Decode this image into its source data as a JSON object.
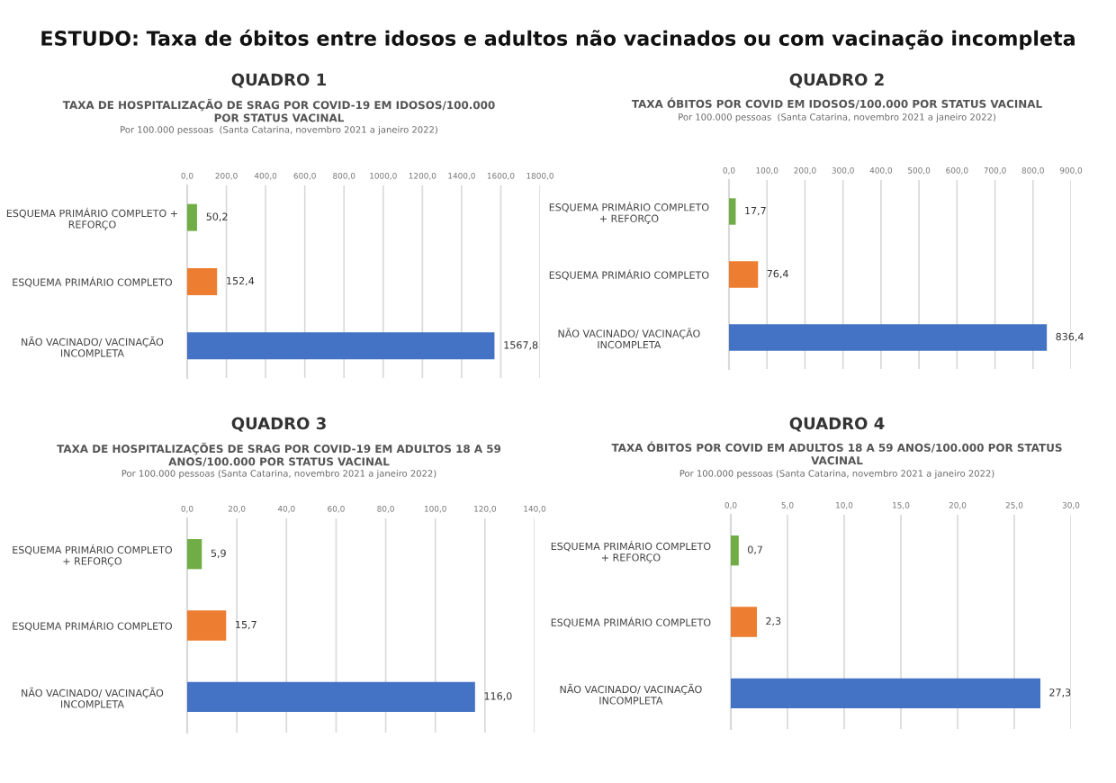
{
  "chart_data": [
    {
      "type": "bar",
      "orientation": "horizontal",
      "title": "QUADRO 1",
      "subtitle": "TAXA DE HOSPITALIZAÇÃO DE SRAG POR COVID-19 EM IDOSOS/100.000\nPOR STATUS VACINAL",
      "annotations": [
        "ESTUDO: Taxa de óbitos entre idosos e adultos não vacinados ou com vacinação incompleta",
        "Por 100.000 pessoas  (Santa Catarina, novembro 2021 a janeiro 2022)"
      ],
      "categories": [
        "ESQUEMA PRIMÁRIO COMPLETO +\nREFORÇO",
        "ESQUEMA PRIMÁRIO COMPLETO",
        "NÃO VACINADO/ VACINAÇÃO\nINCOMPLETA"
      ],
      "values": [
        50.2,
        152.4,
        1567.8
      ],
      "value_labels": [
        "50,2",
        "152,4",
        "1567,8"
      ],
      "colors": [
        "#70ad47",
        "#ed7d31",
        "#4472c4"
      ],
      "xlim": [
        0,
        1800
      ],
      "xticks": [
        {
          "value": 0,
          "label": "0,0"
        },
        {
          "value": 200,
          "label": "200,0"
        },
        {
          "value": 400,
          "label": "400,0"
        },
        {
          "value": 600,
          "label": "600,0"
        },
        {
          "value": 800,
          "label": "800,0"
        },
        {
          "value": 1000,
          "label": "1000,0"
        },
        {
          "value": 1200,
          "label": "1200,0"
        },
        {
          "value": 1400,
          "label": "1400,0"
        },
        {
          "value": 1600,
          "label": "1600,0"
        },
        {
          "value": 1800,
          "label": "1800,0"
        }
      ],
      "grid": "x"
    },
    {
      "type": "bar",
      "orientation": "horizontal",
      "title": "QUADRO 2",
      "subtitle": "TAXA ÓBITOS POR COVID EM IDOSOS/100.000 POR STATUS VACINAL",
      "annotations": [
        "Por 100.000 pessoas  (Santa Catarina, novembro 2021 a janeiro 2022)"
      ],
      "categories": [
        "ESQUEMA PRIMÁRIO COMPLETO\n+ REFORÇO",
        "ESQUEMA PRIMÁRIO COMPLETO",
        "NÃO VACINADO/ VACINAÇÃO\nINCOMPLETA"
      ],
      "values": [
        17.7,
        76.4,
        836.4
      ],
      "value_labels": [
        "17,7",
        "76,4",
        "836,4"
      ],
      "colors": [
        "#70ad47",
        "#ed7d31",
        "#4472c4"
      ],
      "xlim": [
        0,
        900
      ],
      "xticks": [
        {
          "value": 0,
          "label": "0,0"
        },
        {
          "value": 100,
          "label": "100,0"
        },
        {
          "value": 200,
          "label": "200,0"
        },
        {
          "value": 300,
          "label": "300,0"
        },
        {
          "value": 400,
          "label": "400,0"
        },
        {
          "value": 500,
          "label": "500,0"
        },
        {
          "value": 600,
          "label": "600,0"
        },
        {
          "value": 700,
          "label": "700,0"
        },
        {
          "value": 800,
          "label": "800,0"
        },
        {
          "value": 900,
          "label": "900,0"
        }
      ],
      "grid": "x"
    },
    {
      "type": "bar",
      "orientation": "horizontal",
      "title": "QUADRO 3",
      "subtitle": "TAXA DE HOSPITALIZAÇÕES DE SRAG POR COVID-19 EM ADULTOS 18 A 59\nANOS/100.000 POR STATUS VACINAL",
      "annotations": [
        "Por 100.000 pessoas (Santa Catarina, novembro 2021 a janeiro 2022)"
      ],
      "categories": [
        "ESQUEMA PRIMÁRIO COMPLETO\n+ REFORÇO",
        "ESQUEMA PRIMÁRIO COMPLETO",
        "NÃO VACINADO/ VACINAÇÃO\nINCOMPLETA"
      ],
      "values": [
        5.9,
        15.7,
        116.0
      ],
      "value_labels": [
        "5,9",
        "15,7",
        "116,0"
      ],
      "colors": [
        "#70ad47",
        "#ed7d31",
        "#4472c4"
      ],
      "xlim": [
        0,
        140
      ],
      "xticks": [
        {
          "value": 0,
          "label": "0,0"
        },
        {
          "value": 20,
          "label": "20,0"
        },
        {
          "value": 40,
          "label": "40,0"
        },
        {
          "value": 60,
          "label": "60,0"
        },
        {
          "value": 80,
          "label": "80,0"
        },
        {
          "value": 100,
          "label": "100,0"
        },
        {
          "value": 120,
          "label": "120,0"
        },
        {
          "value": 140,
          "label": "140,0"
        }
      ],
      "grid": "x"
    },
    {
      "type": "bar",
      "orientation": "horizontal",
      "title": "QUADRO 4",
      "subtitle": "TAXA ÓBITOS POR COVID EM ADULTOS 18 A 59 ANOS/100.000 POR STATUS\nVACINAL",
      "annotations": [
        "Por 100.000 pessoas (Santa Catarina, novembro 2021 a janeiro 2022)"
      ],
      "categories": [
        "ESQUEMA PRIMÁRIO COMPLETO\n+ REFORÇO",
        "ESQUEMA PRIMÁRIO COMPLETO",
        "NÃO VACINADO/ VACINAÇÃO\nINCOMPLETA"
      ],
      "values": [
        0.7,
        2.3,
        27.3
      ],
      "value_labels": [
        "0,7",
        "2,3",
        "27,3"
      ],
      "colors": [
        "#70ad47",
        "#ed7d31",
        "#4472c4"
      ],
      "xlim": [
        0,
        30
      ],
      "xticks": [
        {
          "value": 0,
          "label": "0,0"
        },
        {
          "value": 5,
          "label": "5,0"
        },
        {
          "value": 10,
          "label": "10,0"
        },
        {
          "value": 15,
          "label": "15,0"
        },
        {
          "value": 20,
          "label": "20,0"
        },
        {
          "value": 25,
          "label": "25,0"
        },
        {
          "value": 30,
          "label": "30,0"
        }
      ],
      "grid": "x"
    }
  ]
}
